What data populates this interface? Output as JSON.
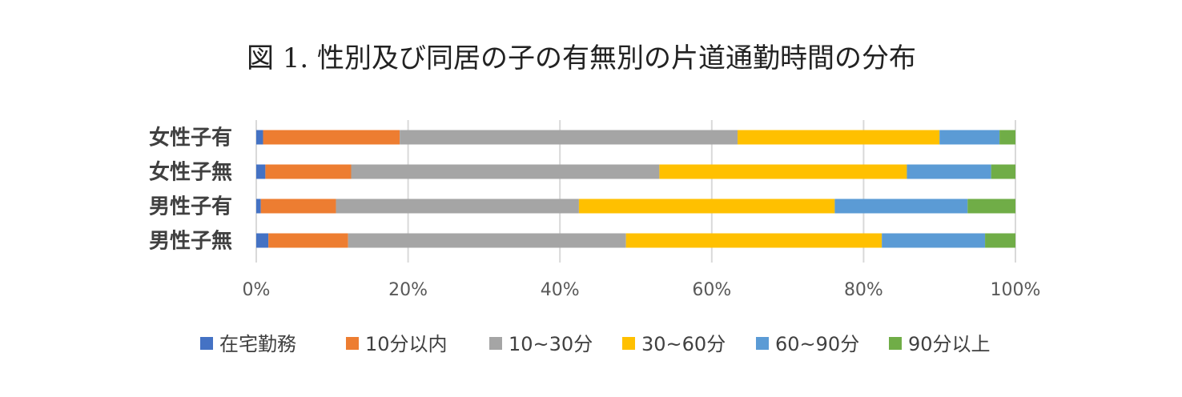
{
  "chart_data": {
    "type": "bar",
    "orientation": "horizontal",
    "stacked": "percent",
    "title": "図 1. 性別及び同居の子の有無別の片道通勤時間の分布",
    "categories": [
      "女性子有",
      "女性子無",
      "男性子有",
      "男性子無"
    ],
    "series": [
      {
        "name": "在宅勤務",
        "color": "#4472C4",
        "values": [
          0.9,
          1.2,
          0.6,
          1.6
        ]
      },
      {
        "name": "10分以内",
        "color": "#ED7D31",
        "values": [
          18.0,
          11.3,
          9.9,
          10.5
        ]
      },
      {
        "name": "10~30分",
        "color": "#A5A5A5",
        "values": [
          44.5,
          40.6,
          32.0,
          36.6
        ]
      },
      {
        "name": "30~60分",
        "color": "#FFC000",
        "values": [
          26.6,
          32.6,
          33.7,
          33.7
        ]
      },
      {
        "name": "60~90分",
        "color": "#5B9BD5",
        "values": [
          7.9,
          11.1,
          17.5,
          13.6
        ]
      },
      {
        "name": "90分以上",
        "color": "#70AD47",
        "values": [
          2.1,
          3.2,
          6.3,
          4.0
        ]
      }
    ],
    "xlim": [
      0,
      100
    ],
    "x_ticks": [
      "0%",
      "20%",
      "40%",
      "60%",
      "80%",
      "100%"
    ],
    "grid": true,
    "legend_position": "bottom"
  }
}
